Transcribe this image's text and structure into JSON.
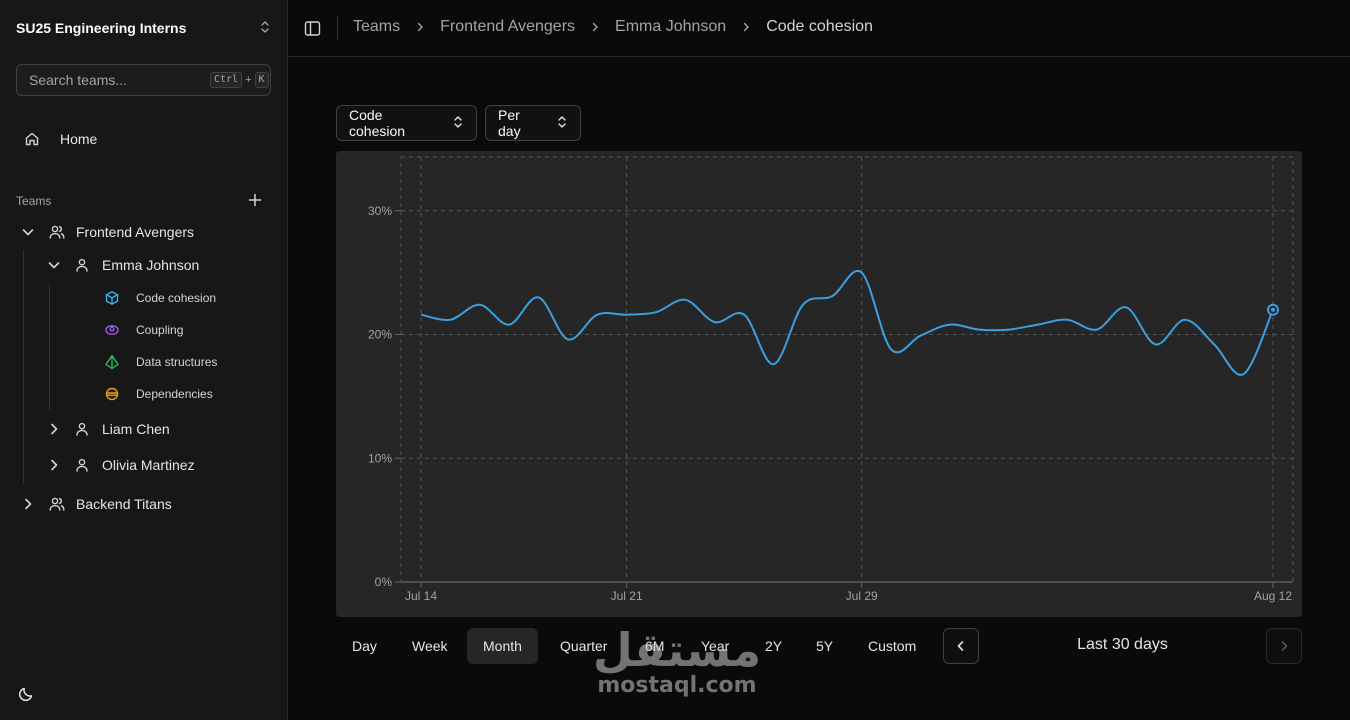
{
  "sidebar": {
    "workspace": "SU25 Engineering Interns",
    "search": {
      "placeholder": "Search teams...",
      "shortcut_key1": "Ctrl",
      "shortcut_plus": "+",
      "shortcut_key2": "K"
    },
    "home_label": "Home",
    "teams_label": "Teams",
    "teams": [
      {
        "name": "Frontend Avengers",
        "expanded": true,
        "members": [
          {
            "name": "Emma Johnson",
            "expanded": true,
            "metrics": [
              {
                "label": "Code cohesion",
                "icon": "cube-icon",
                "color": "#38bdf8"
              },
              {
                "label": "Coupling",
                "icon": "link-icon",
                "color": "#a855f7"
              },
              {
                "label": "Data structures",
                "icon": "pyramid-icon",
                "color": "#22c55e"
              },
              {
                "label": "Dependencies",
                "icon": "planet-icon",
                "color": "#f59e0b"
              }
            ]
          },
          {
            "name": "Liam Chen",
            "expanded": false
          },
          {
            "name": "Olivia Martinez",
            "expanded": false
          }
        ]
      },
      {
        "name": "Backend Titans",
        "expanded": false
      }
    ]
  },
  "header": {
    "breadcrumb": [
      "Teams",
      "Frontend Avengers",
      "Emma Johnson",
      "Code cohesion"
    ]
  },
  "controls": {
    "metric_select": "Code cohesion",
    "interval_select": "Per day"
  },
  "range": {
    "options": [
      "Day",
      "Week",
      "Month",
      "Quarter",
      "6M",
      "Year",
      "2Y",
      "5Y",
      "Custom"
    ],
    "active": "Month",
    "period_label": "Last 30 days"
  },
  "watermark": {
    "arabic": "مستقل",
    "latin": "mostaql.com"
  },
  "colors": {
    "line": "#3b9fe0",
    "bg": "#0a0a0a",
    "sidebar": "#171717",
    "chart_bg": "#262626"
  },
  "chart_data": {
    "type": "line",
    "title": "",
    "xlabel": "",
    "ylabel": "",
    "x_tick_labels": [
      "Jul 14",
      "Jul 21",
      "Jul 29",
      "Aug 12"
    ],
    "y_tick_labels": [
      "0%",
      "10%",
      "20%",
      "30%"
    ],
    "ylim": [
      0,
      32
    ],
    "grid": true,
    "x": [
      "2025-07-14",
      "2025-07-15",
      "2025-07-16",
      "2025-07-17",
      "2025-07-18",
      "2025-07-19",
      "2025-07-20",
      "2025-07-21",
      "2025-07-22",
      "2025-07-23",
      "2025-07-24",
      "2025-07-25",
      "2025-07-26",
      "2025-07-27",
      "2025-07-28",
      "2025-07-29",
      "2025-07-30",
      "2025-07-31",
      "2025-08-01",
      "2025-08-02",
      "2025-08-03",
      "2025-08-04",
      "2025-08-05",
      "2025-08-06",
      "2025-08-07",
      "2025-08-08",
      "2025-08-09",
      "2025-08-10",
      "2025-08-11",
      "2025-08-12"
    ],
    "series": [
      {
        "values": [
          21.6,
          21.2,
          22.4,
          20.8,
          23.0,
          19.6,
          21.6,
          21.6,
          21.8,
          22.8,
          21.0,
          21.6,
          17.6,
          22.4,
          23.1,
          25.0,
          18.8,
          19.9,
          20.8,
          20.4,
          20.4,
          20.8,
          21.2,
          20.4,
          22.2,
          19.2,
          21.2,
          19.2,
          16.8,
          22.0
        ]
      }
    ],
    "highlight_last_point": true
  }
}
